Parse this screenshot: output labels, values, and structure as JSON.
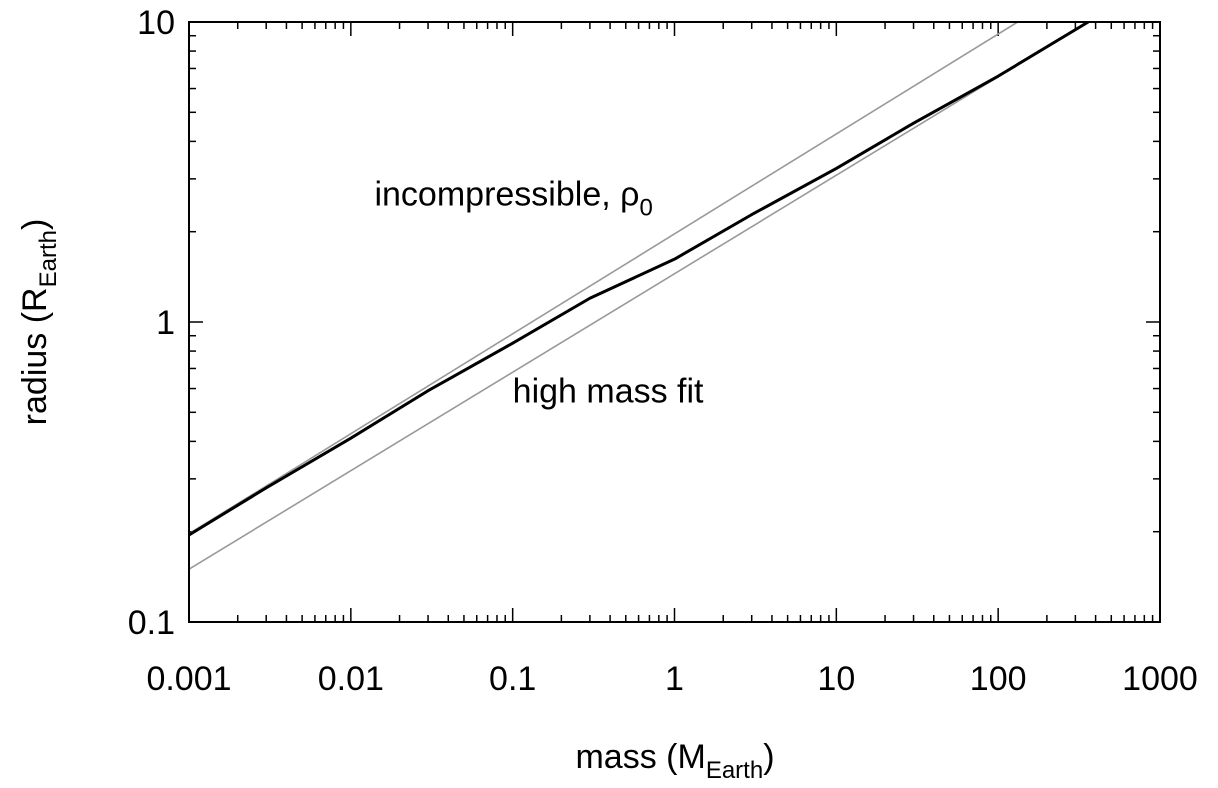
{
  "chart_data": {
    "type": "line",
    "x_scale": "log",
    "y_scale": "log",
    "xlim": [
      0.001,
      1000
    ],
    "ylim": [
      0.1,
      10
    ],
    "grid": false,
    "x_ticks": [
      0.001,
      0.01,
      0.1,
      1,
      10,
      100,
      1000
    ],
    "x_tick_labels": [
      "0.001",
      "0.01",
      "0.1",
      "1",
      "10",
      "100",
      "1000"
    ],
    "y_ticks": [
      0.1,
      1,
      10
    ],
    "y_tick_labels": [
      "0.1",
      "1",
      "10"
    ],
    "xlabel": {
      "main": "mass (M",
      "sub": "Earth",
      "close": ")"
    },
    "ylabel": {
      "main": "radius (R",
      "sub": "Earth",
      "close": ")"
    },
    "annotations": [
      {
        "text": "incompressible, ρ",
        "sub": "0",
        "x": 0.014,
        "y": 2.45
      },
      {
        "text": "high mass fit",
        "x": 0.1,
        "y": 0.54
      }
    ],
    "series": [
      {
        "color": "#000000",
        "x": [
          0.001,
          0.003,
          0.01,
          0.03,
          0.1,
          0.3,
          1,
          3,
          10,
          30,
          100,
          360
        ],
        "y": [
          0.195,
          0.28,
          0.41,
          0.59,
          0.85,
          1.2,
          1.62,
          2.28,
          3.25,
          4.6,
          6.6,
          10.0
        ]
      },
      {
        "color": "#999999",
        "x": [
          0.001,
          140
        ],
        "y": [
          0.197,
          10.2
        ]
      },
      {
        "color": "#999999",
        "x": [
          0.001,
          360
        ],
        "y": [
          0.15,
          10.0
        ]
      }
    ]
  }
}
